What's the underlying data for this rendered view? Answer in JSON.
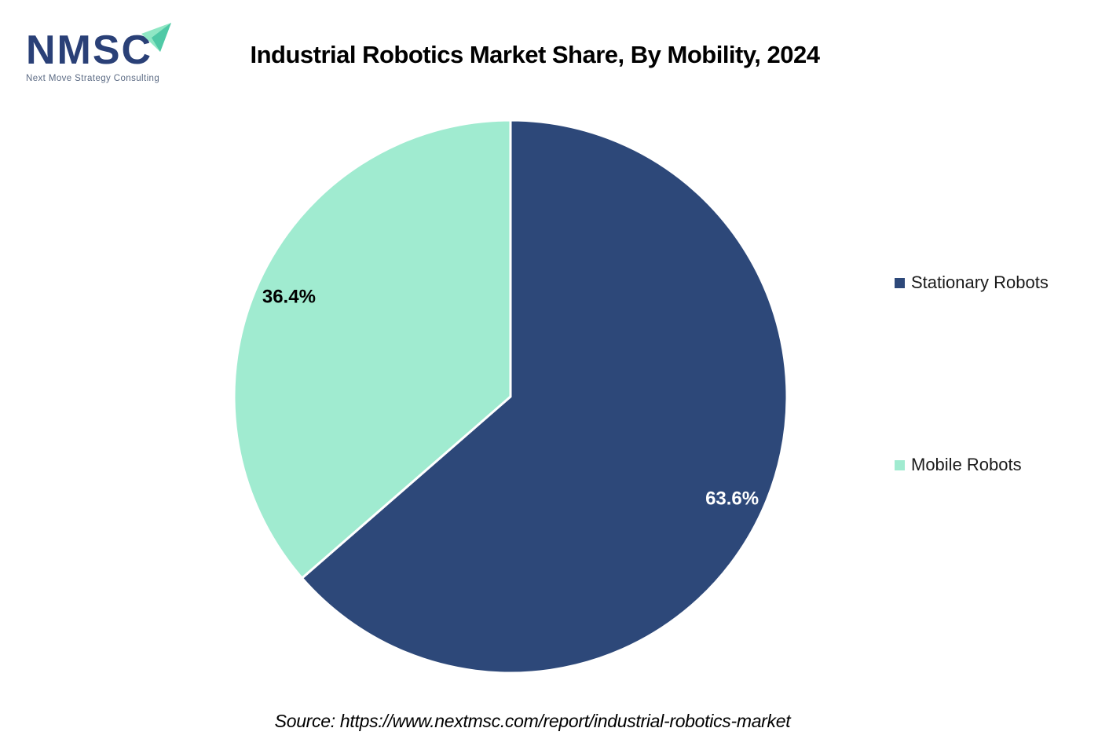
{
  "logo": {
    "name": "NMSC",
    "tagline": "Next Move Strategy Consulting",
    "colors": {
      "text": "#2A4077",
      "tagline": "#5C6B84",
      "arrow_light": "#8FE7C4",
      "arrow_dark": "#4FC9A6"
    }
  },
  "header": {
    "title": "Industrial Robotics Market Share, By Mobility, 2024"
  },
  "chart_data": {
    "type": "pie",
    "title": "Industrial Robotics Market Share, By Mobility, 2024",
    "slices": [
      {
        "label": "Stationary Robots",
        "value": 63.6,
        "display": "63.6%",
        "color": "#2D4879",
        "label_color": "#FFFFFF"
      },
      {
        "label": "Mobile Robots",
        "value": 36.4,
        "display": "36.4%",
        "color": "#A0EBD0",
        "label_color": "#000000"
      }
    ],
    "start_angle_deg": 0,
    "direction": "clockwise",
    "divider_color": "#FFFFFF",
    "legend_position": "right",
    "data_labels": "percent-inside"
  },
  "footer": {
    "source": "Source: https://www.nextmsc.com/report/industrial-robotics-market"
  }
}
